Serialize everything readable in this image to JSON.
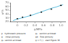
{
  "chart_data": {
    "type": "scatter",
    "xlabel": "p/MPa",
    "ylabel": "ψ/%",
    "xlim": [
      -0.15,
      1.1
    ],
    "ylim": [
      20,
      70
    ],
    "xticks": [
      0.0,
      0.2,
      0.4,
      0.6,
      0.8,
      {
        "value": 1.0,
        "label": "1.0"
      }
    ],
    "yticks": [
      20,
      30,
      40,
      50,
      60,
      70
    ],
    "grid": false,
    "series": [
      {
        "type": "line",
        "color": "#55bbdd",
        "x": [
          -0.1,
          0.0,
          0.1,
          0.2,
          0.3,
          0.4,
          0.5,
          0.6,
          0.7,
          0.8,
          0.9,
          1.0,
          1.05
        ],
        "values": [
          23,
          27,
          30,
          33,
          36,
          40,
          44,
          48,
          52,
          56,
          59,
          63,
          65
        ]
      },
      {
        "type": "scatter",
        "color": "#111111",
        "marker": "square",
        "x": [
          0.0,
          0.12,
          0.3,
          0.55,
          0.78,
          1.0
        ],
        "values": [
          28,
          32,
          37,
          45,
          53,
          63
        ]
      }
    ],
    "annotations": [
      "p   hydrostatic pressure",
      "ψ₀   section at break",
      "ψ    initial porosity",
      "ψd   flow porosity",
      "ψ₀  section at break",
      "ψ = f ( )   start figure 36"
    ]
  }
}
